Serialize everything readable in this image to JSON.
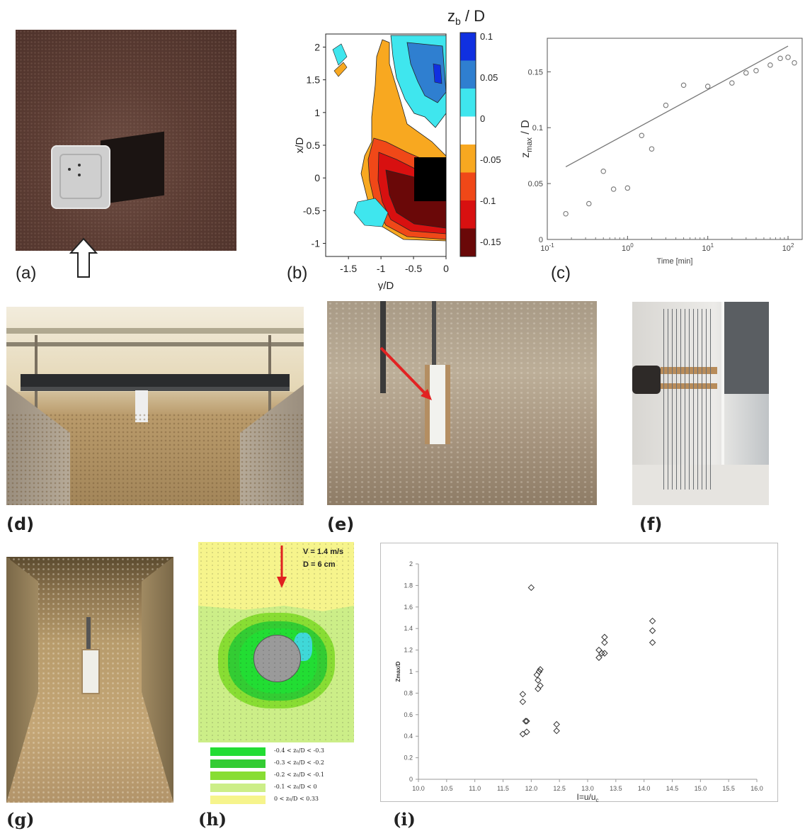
{
  "labels": {
    "a": "(a)",
    "b": "(b)",
    "c": "(c)",
    "d": "(d)",
    "e": "(e)",
    "f": "(f)",
    "g": "(g)",
    "h": "(h)",
    "i": "(i)"
  },
  "panel_b": {
    "colorbar_title": "z",
    "colorbar_title_sub": "b",
    "colorbar_title_suffix": " / D",
    "colorbar_ticks": [
      "0.1",
      "0.05",
      "0",
      "-0.05",
      "-0.1",
      "-0.15"
    ],
    "colorbar_colors": [
      "#1030e0",
      "#2f7fd0",
      "#3fe6ee",
      "#ffffff",
      "#f8a820",
      "#f04818",
      "#d81010",
      "#6a0808"
    ],
    "ylabel": "x/D",
    "xlabel": "y/D",
    "xticks": [
      "-1.5",
      "-1",
      "-0.5",
      "0"
    ],
    "yticks": [
      "2",
      "1.5",
      "1",
      "0.5",
      "0",
      "-0.5",
      "-1"
    ]
  },
  "panel_h": {
    "velocity_text": "V = 1.4 m/s",
    "diameter_text": "D = 6 cm",
    "legend": [
      {
        "text": "-0.4 < z₀/D < -0.3",
        "color": "#22dd33"
      },
      {
        "text": "-0.3 < z₀/D < -0.2",
        "color": "#33cc33"
      },
      {
        "text": "-0.2 < z₀/D < -0.1",
        "color": "#88dd33"
      },
      {
        "text": "-0.1 < z₀/D < 0",
        "color": "#ccee88"
      },
      {
        "text": "0 < z₀/D < 0.33",
        "color": "#f6f48c"
      }
    ]
  },
  "chart_data": [
    {
      "id": "c",
      "type": "scatter",
      "xlabel": "Time [min]",
      "ylabel": "z_max / D",
      "xscale": "log",
      "xlim": [
        0.1,
        150
      ],
      "ylim": [
        0,
        0.18
      ],
      "xticks": [
        {
          "value": 0.1,
          "label": "10-1"
        },
        {
          "value": 1,
          "label": "100"
        },
        {
          "value": 10,
          "label": "101"
        },
        {
          "value": 100,
          "label": "102"
        }
      ],
      "yticks": [
        0,
        0.05,
        0.1,
        0.15
      ],
      "points": [
        [
          0.17,
          0.023
        ],
        [
          0.33,
          0.032
        ],
        [
          0.5,
          0.061
        ],
        [
          0.67,
          0.045
        ],
        [
          1.0,
          0.046
        ],
        [
          1.5,
          0.093
        ],
        [
          2.0,
          0.081
        ],
        [
          3.0,
          0.12
        ],
        [
          5.0,
          0.138
        ],
        [
          10,
          0.137
        ],
        [
          20,
          0.14
        ],
        [
          30,
          0.149
        ],
        [
          40,
          0.151
        ],
        [
          60,
          0.156
        ],
        [
          80,
          0.162
        ],
        [
          100,
          0.163
        ],
        [
          120,
          0.158
        ]
      ],
      "fit_line": [
        [
          0.17,
          0.065
        ],
        [
          100,
          0.173
        ]
      ]
    },
    {
      "id": "i",
      "type": "scatter",
      "xlabel": "I=u/uc",
      "ylabel": "Zmax/D",
      "xlim": [
        10.0,
        16.0
      ],
      "ylim": [
        0,
        2
      ],
      "xticks": [
        "10.0",
        "10.5",
        "11.0",
        "11.5",
        "12.0",
        "12.5",
        "13.0",
        "13.5",
        "14.0",
        "14.5",
        "15.0",
        "15.5",
        "16.0"
      ],
      "yticks": [
        "0",
        "0.2",
        "0.4",
        "0.6",
        "0.8",
        "1",
        "1.2",
        "1.4",
        "1.6",
        "1.8",
        "2"
      ],
      "points": [
        [
          11.85,
          0.79
        ],
        [
          11.85,
          0.72
        ],
        [
          11.9,
          0.54
        ],
        [
          11.92,
          0.54
        ],
        [
          11.85,
          0.42
        ],
        [
          11.92,
          0.44
        ],
        [
          12.0,
          1.78
        ],
        [
          12.1,
          0.97
        ],
        [
          12.12,
          0.92
        ],
        [
          12.14,
          1.0
        ],
        [
          12.16,
          1.02
        ],
        [
          12.12,
          0.84
        ],
        [
          12.16,
          0.87
        ],
        [
          12.45,
          0.51
        ],
        [
          12.45,
          0.45
        ],
        [
          13.2,
          1.2
        ],
        [
          13.2,
          1.13
        ],
        [
          13.25,
          1.17
        ],
        [
          13.3,
          1.32
        ],
        [
          13.3,
          1.27
        ],
        [
          13.3,
          1.17
        ],
        [
          14.15,
          1.47
        ],
        [
          14.15,
          1.38
        ],
        [
          14.15,
          1.27
        ]
      ]
    }
  ]
}
